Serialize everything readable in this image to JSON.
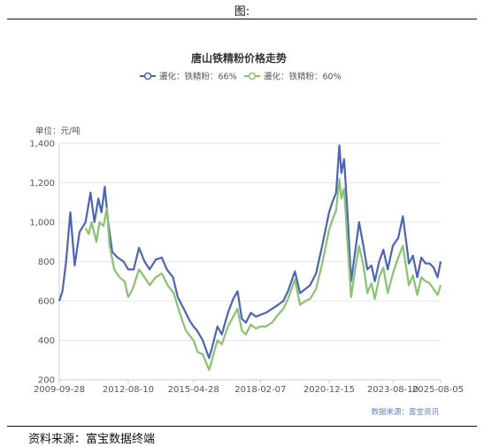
{
  "figure_label": "图:",
  "source_note": "资料来源：富宝数据终端",
  "colors": {
    "series_a": "#4a63c2",
    "series_b": "#86c56a",
    "grid": "#e6e6e6",
    "axis": "#cccccc"
  },
  "chart_data": {
    "type": "line",
    "title": "唐山铁精粉价格走势",
    "unit_label": "单位：元/吨",
    "credit": "数据来源：富宝资讯",
    "xlabel": "",
    "ylabel": "",
    "x_range": [
      "2009-09-28",
      "2025-08-05"
    ],
    "ylim": [
      200,
      1400
    ],
    "y_ticks": [
      200,
      400,
      600,
      800,
      1000,
      1200,
      1400
    ],
    "y_tick_labels": [
      "200",
      "400",
      "600",
      "800",
      "1,000",
      "1,200",
      "1,400"
    ],
    "x_ticks": [
      "2009-09-28",
      "2012-08-10",
      "2015-04-28",
      "2018-02-07",
      "2020-12-15",
      "2023-08-10",
      "2025-08-05"
    ],
    "legend_position": "top-center",
    "grid": "horizontal",
    "series": [
      {
        "name": "遷化：铁精粉：66%",
        "points": [
          [
            "2009-09-28",
            600
          ],
          [
            "2009-11-15",
            650
          ],
          [
            "2010-01-10",
            800
          ],
          [
            "2010-03-15",
            1050
          ],
          [
            "2010-05-20",
            780
          ],
          [
            "2010-08-01",
            950
          ],
          [
            "2010-11-01",
            1000
          ],
          [
            "2011-01-15",
            1150
          ],
          [
            "2011-03-15",
            1000
          ],
          [
            "2011-05-15",
            1120
          ],
          [
            "2011-07-01",
            1050
          ],
          [
            "2011-08-20",
            1180
          ],
          [
            "2011-10-10",
            1000
          ],
          [
            "2011-12-10",
            850
          ],
          [
            "2012-03-01",
            820
          ],
          [
            "2012-06-01",
            800
          ],
          [
            "2012-08-10",
            760
          ],
          [
            "2012-11-01",
            760
          ],
          [
            "2013-01-20",
            870
          ],
          [
            "2013-04-15",
            800
          ],
          [
            "2013-07-01",
            760
          ],
          [
            "2013-10-01",
            810
          ],
          [
            "2014-01-01",
            820
          ],
          [
            "2014-03-20",
            760
          ],
          [
            "2014-06-20",
            720
          ],
          [
            "2014-09-01",
            620
          ],
          [
            "2014-12-01",
            560
          ],
          [
            "2015-03-01",
            500
          ],
          [
            "2015-04-28",
            470
          ],
          [
            "2015-06-20",
            450
          ],
          [
            "2015-09-15",
            400
          ],
          [
            "2015-12-20",
            310
          ],
          [
            "2016-02-01",
            360
          ],
          [
            "2016-04-25",
            470
          ],
          [
            "2016-07-01",
            430
          ],
          [
            "2016-10-01",
            540
          ],
          [
            "2016-12-20",
            610
          ],
          [
            "2017-02-25",
            650
          ],
          [
            "2017-05-01",
            510
          ],
          [
            "2017-07-01",
            490
          ],
          [
            "2017-09-15",
            540
          ],
          [
            "2017-12-01",
            520
          ],
          [
            "2018-02-07",
            530
          ],
          [
            "2018-05-01",
            540
          ],
          [
            "2018-08-01",
            560
          ],
          [
            "2018-11-01",
            580
          ],
          [
            "2019-01-20",
            600
          ],
          [
            "2019-04-01",
            650
          ],
          [
            "2019-07-15",
            750
          ],
          [
            "2019-10-01",
            640
          ],
          [
            "2019-12-20",
            660
          ],
          [
            "2020-03-01",
            680
          ],
          [
            "2020-06-01",
            740
          ],
          [
            "2020-09-01",
            880
          ],
          [
            "2020-12-15",
            1050
          ],
          [
            "2021-02-01",
            1100
          ],
          [
            "2021-04-01",
            1150
          ],
          [
            "2021-05-20",
            1390
          ],
          [
            "2021-06-20",
            1250
          ],
          [
            "2021-08-01",
            1320
          ],
          [
            "2021-09-20",
            1050
          ],
          [
            "2021-11-15",
            700
          ],
          [
            "2022-01-15",
            850
          ],
          [
            "2022-03-15",
            1000
          ],
          [
            "2022-05-20",
            880
          ],
          [
            "2022-07-20",
            760
          ],
          [
            "2022-09-20",
            780
          ],
          [
            "2022-11-10",
            700
          ],
          [
            "2023-01-15",
            800
          ],
          [
            "2023-03-20",
            860
          ],
          [
            "2023-05-25",
            760
          ],
          [
            "2023-08-10",
            880
          ],
          [
            "2023-11-01",
            920
          ],
          [
            "2024-01-10",
            1030
          ],
          [
            "2024-03-01",
            900
          ],
          [
            "2024-04-10",
            790
          ],
          [
            "2024-06-10",
            830
          ],
          [
            "2024-08-15",
            720
          ],
          [
            "2024-10-15",
            820
          ],
          [
            "2024-12-20",
            790
          ],
          [
            "2025-02-20",
            790
          ],
          [
            "2025-04-20",
            770
          ],
          [
            "2025-06-20",
            720
          ],
          [
            "2025-08-05",
            800
          ]
        ]
      },
      {
        "name": "遷化：铁精粉：60%",
        "points": [
          [
            "2010-11-01",
            970
          ],
          [
            "2010-12-20",
            940
          ],
          [
            "2011-02-01",
            1000
          ],
          [
            "2011-04-15",
            900
          ],
          [
            "2011-06-01",
            1000
          ],
          [
            "2011-08-01",
            980
          ],
          [
            "2011-09-20",
            1070
          ],
          [
            "2011-11-01",
            880
          ],
          [
            "2012-01-10",
            760
          ],
          [
            "2012-04-01",
            720
          ],
          [
            "2012-06-15",
            700
          ],
          [
            "2012-08-10",
            620
          ],
          [
            "2012-10-15",
            660
          ],
          [
            "2013-01-20",
            760
          ],
          [
            "2013-04-15",
            720
          ],
          [
            "2013-07-01",
            680
          ],
          [
            "2013-10-01",
            720
          ],
          [
            "2014-01-01",
            740
          ],
          [
            "2014-04-01",
            680
          ],
          [
            "2014-07-01",
            640
          ],
          [
            "2014-10-01",
            540
          ],
          [
            "2015-01-01",
            450
          ],
          [
            "2015-04-28",
            400
          ],
          [
            "2015-07-01",
            340
          ],
          [
            "2015-09-15",
            330
          ],
          [
            "2015-12-20",
            250
          ],
          [
            "2016-02-01",
            300
          ],
          [
            "2016-04-25",
            400
          ],
          [
            "2016-07-01",
            380
          ],
          [
            "2016-10-01",
            470
          ],
          [
            "2016-12-20",
            520
          ],
          [
            "2017-02-25",
            560
          ],
          [
            "2017-05-01",
            450
          ],
          [
            "2017-07-01",
            430
          ],
          [
            "2017-09-15",
            480
          ],
          [
            "2017-12-01",
            460
          ],
          [
            "2018-02-07",
            470
          ],
          [
            "2018-05-01",
            470
          ],
          [
            "2018-08-01",
            490
          ],
          [
            "2018-11-01",
            530
          ],
          [
            "2019-01-20",
            560
          ],
          [
            "2019-04-01",
            610
          ],
          [
            "2019-07-15",
            710
          ],
          [
            "2019-10-01",
            580
          ],
          [
            "2019-12-20",
            600
          ],
          [
            "2020-03-01",
            610
          ],
          [
            "2020-06-01",
            660
          ],
          [
            "2020-09-01",
            790
          ],
          [
            "2020-12-15",
            960
          ],
          [
            "2021-02-01",
            1010
          ],
          [
            "2021-04-01",
            1060
          ],
          [
            "2021-05-20",
            1220
          ],
          [
            "2021-06-20",
            1120
          ],
          [
            "2021-08-01",
            1170
          ],
          [
            "2021-09-20",
            900
          ],
          [
            "2021-11-15",
            620
          ],
          [
            "2022-01-15",
            760
          ],
          [
            "2022-03-15",
            880
          ],
          [
            "2022-05-20",
            780
          ],
          [
            "2022-07-20",
            640
          ],
          [
            "2022-09-20",
            690
          ],
          [
            "2022-11-10",
            610
          ],
          [
            "2023-01-15",
            720
          ],
          [
            "2023-03-20",
            770
          ],
          [
            "2023-05-25",
            640
          ],
          [
            "2023-08-10",
            740
          ],
          [
            "2023-11-01",
            820
          ],
          [
            "2024-01-10",
            880
          ],
          [
            "2024-03-01",
            770
          ],
          [
            "2024-04-10",
            680
          ],
          [
            "2024-06-10",
            730
          ],
          [
            "2024-08-15",
            630
          ],
          [
            "2024-10-15",
            720
          ],
          [
            "2024-12-20",
            700
          ],
          [
            "2025-02-20",
            690
          ],
          [
            "2025-04-20",
            660
          ],
          [
            "2025-06-20",
            630
          ],
          [
            "2025-08-05",
            680
          ]
        ]
      }
    ]
  }
}
